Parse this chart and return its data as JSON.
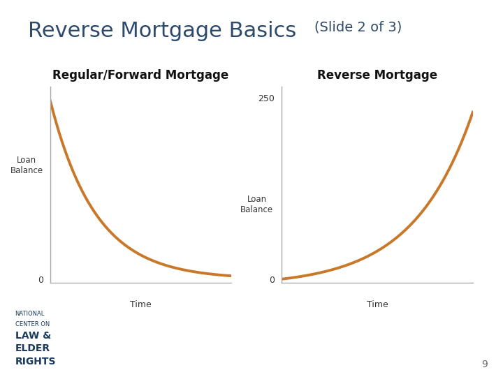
{
  "title_main": "Reverse Mortgage Basics",
  "title_sub": "(Slide 2 of 3)",
  "title_color": "#2E4A6B",
  "title_main_fontsize": 22,
  "title_sub_fontsize": 14,
  "bg_color": "#FFFFFF",
  "left_chart_title": "Regular/Forward Mortgage",
  "right_chart_title": "Reverse Mortgage",
  "chart_title_fontsize": 12,
  "chart_title_color": "#111111",
  "curve_color": "#C87828",
  "curve_linewidth": 2.8,
  "axis_color": "#AAAAAA",
  "ylabel_left": "Loan\nBalance",
  "ylabel_right": "Loan\nBalance",
  "xlabel": "Time",
  "logo_line1": "NATIONAL",
  "logo_line2": "CENTER ON",
  "logo_line3": "LAW &",
  "logo_line4": "ELDER",
  "logo_line5": "RIGHTS",
  "logo_color": "#1B3A5C",
  "page_number": "9",
  "page_number_color": "#666666"
}
